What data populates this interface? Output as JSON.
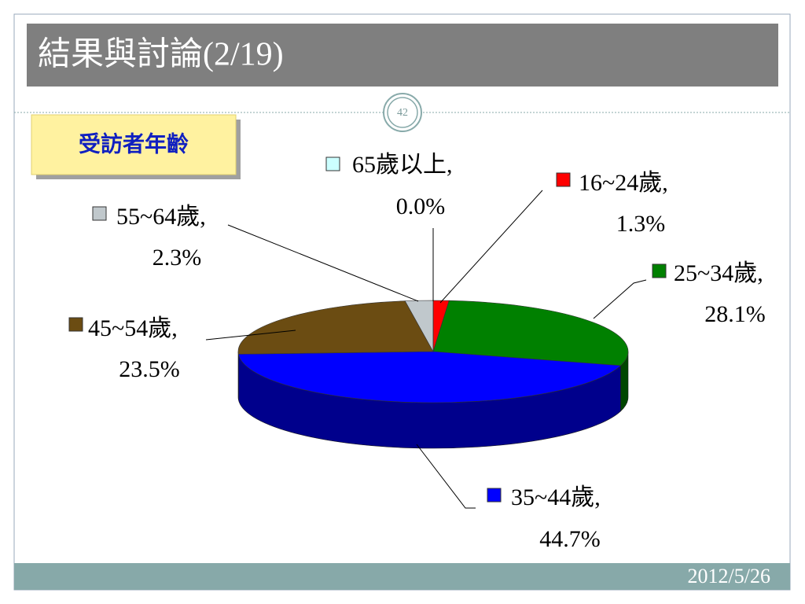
{
  "slide": {
    "title": "結果與討論(2/19)",
    "page_number": "42",
    "date": "2012/5/26"
  },
  "chart_data": {
    "type": "pie3d",
    "title": "受訪者年齡",
    "categories": [
      "16~24歲,",
      "25~34歲,",
      "35~44歲,",
      "45~54歲,",
      "55~64歲,",
      "65歲以上,"
    ],
    "values": [
      1.3,
      28.1,
      44.7,
      23.5,
      2.3,
      0.0
    ],
    "value_labels": [
      "1.3%",
      "28.1%",
      "44.7%",
      "23.5%",
      "2.3%",
      "0.0%"
    ],
    "colors": [
      "#ff0000",
      "#008000",
      "#0000ff",
      "#6b4c12",
      "#c0c8cc",
      "#ccffff"
    ]
  }
}
